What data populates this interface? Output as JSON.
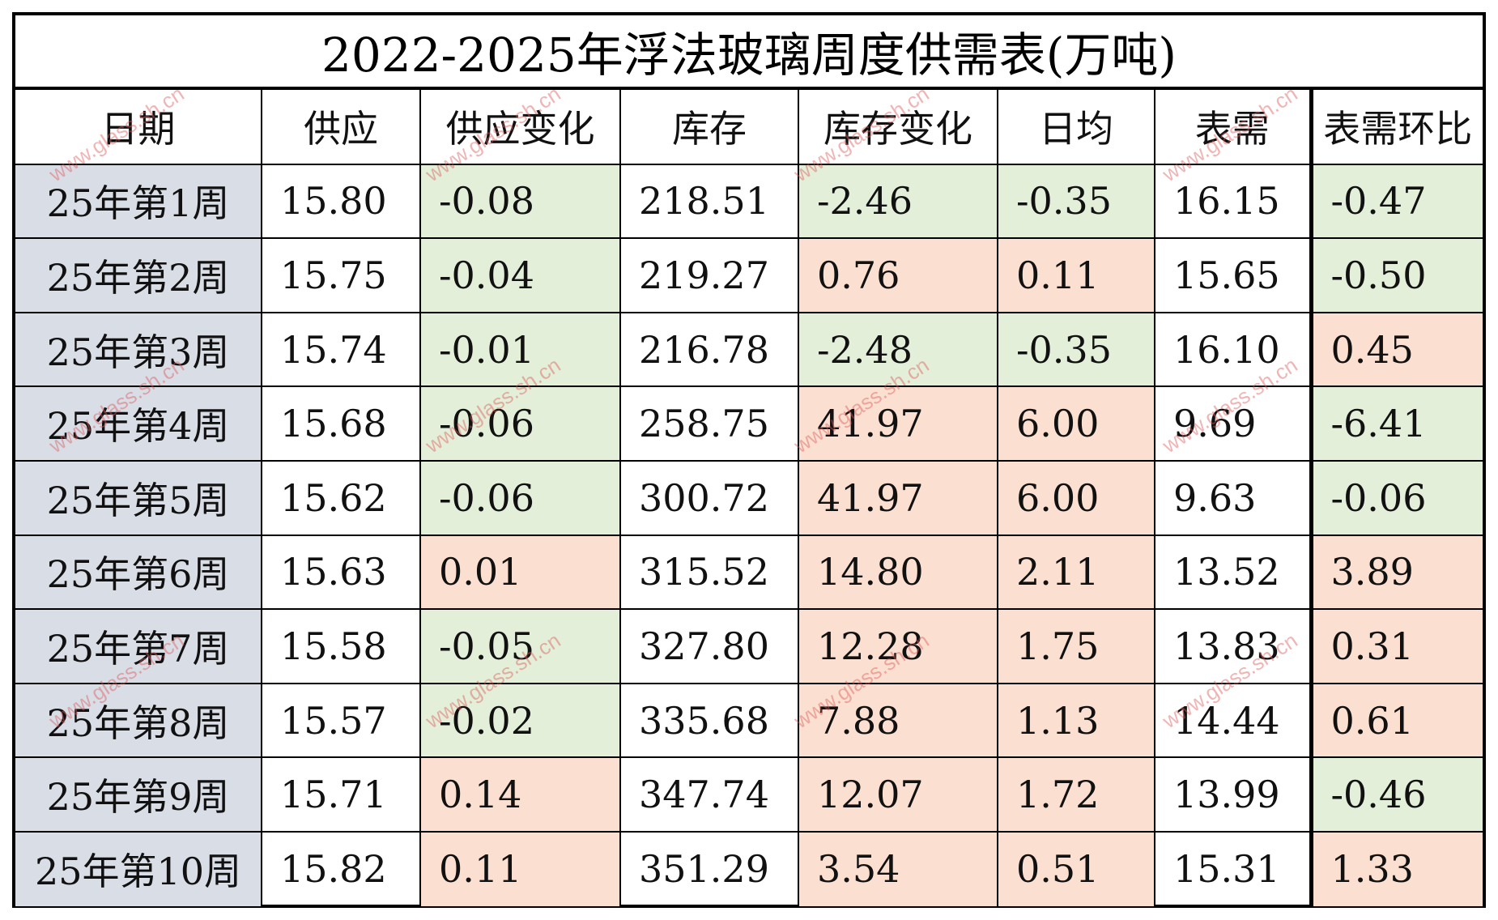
{
  "title": "2022-2025年浮法玻璃周度供需表(万吨)",
  "headers": [
    "日期",
    "供应",
    "供应变化",
    "库存",
    "库存变化",
    "日均",
    "表需",
    "表需环比"
  ],
  "rows": [
    {
      "date": "25年第1周",
      "supply": "15.80",
      "supply_change": "-0.08",
      "inventory": "218.51",
      "inventory_change": "-2.46",
      "daily_avg": "-0.35",
      "apparent_demand": "16.15",
      "demand_mom": "-0.47"
    },
    {
      "date": "25年第2周",
      "supply": "15.75",
      "supply_change": "-0.04",
      "inventory": "219.27",
      "inventory_change": "0.76",
      "daily_avg": "0.11",
      "apparent_demand": "15.65",
      "demand_mom": "-0.50"
    },
    {
      "date": "25年第3周",
      "supply": "15.74",
      "supply_change": "-0.01",
      "inventory": "216.78",
      "inventory_change": "-2.48",
      "daily_avg": "-0.35",
      "apparent_demand": "16.10",
      "demand_mom": "0.45"
    },
    {
      "date": "25年第4周",
      "supply": "15.68",
      "supply_change": "-0.06",
      "inventory": "258.75",
      "inventory_change": "41.97",
      "daily_avg": "6.00",
      "apparent_demand": "9.69",
      "demand_mom": "-6.41"
    },
    {
      "date": "25年第5周",
      "supply": "15.62",
      "supply_change": "-0.06",
      "inventory": "300.72",
      "inventory_change": "41.97",
      "daily_avg": "6.00",
      "apparent_demand": "9.63",
      "demand_mom": "-0.06"
    },
    {
      "date": "25年第6周",
      "supply": "15.63",
      "supply_change": "0.01",
      "inventory": "315.52",
      "inventory_change": "14.80",
      "daily_avg": "2.11",
      "apparent_demand": "13.52",
      "demand_mom": "3.89"
    },
    {
      "date": "25年第7周",
      "supply": "15.58",
      "supply_change": "-0.05",
      "inventory": "327.80",
      "inventory_change": "12.28",
      "daily_avg": "1.75",
      "apparent_demand": "13.83",
      "demand_mom": "0.31"
    },
    {
      "date": "25年第8周",
      "supply": "15.57",
      "supply_change": "-0.02",
      "inventory": "335.68",
      "inventory_change": "7.88",
      "daily_avg": "1.13",
      "apparent_demand": "14.44",
      "demand_mom": "0.61"
    },
    {
      "date": "25年第9周",
      "supply": "15.71",
      "supply_change": "0.14",
      "inventory": "347.74",
      "inventory_change": "12.07",
      "daily_avg": "1.72",
      "apparent_demand": "13.99",
      "demand_mom": "-0.46"
    },
    {
      "date": "25年第10周",
      "supply": "15.82",
      "supply_change": "0.11",
      "inventory": "351.29",
      "inventory_change": "3.54",
      "daily_avg": "0.51",
      "apparent_demand": "15.31",
      "demand_mom": "1.33"
    }
  ],
  "colors": {
    "negative_fill": "#e3efd9",
    "positive_fill": "#fbe0d1",
    "date_fill": "#d9dde6",
    "watermark": "#dc5a5a"
  },
  "watermark": "www.glass.sh.cn"
}
